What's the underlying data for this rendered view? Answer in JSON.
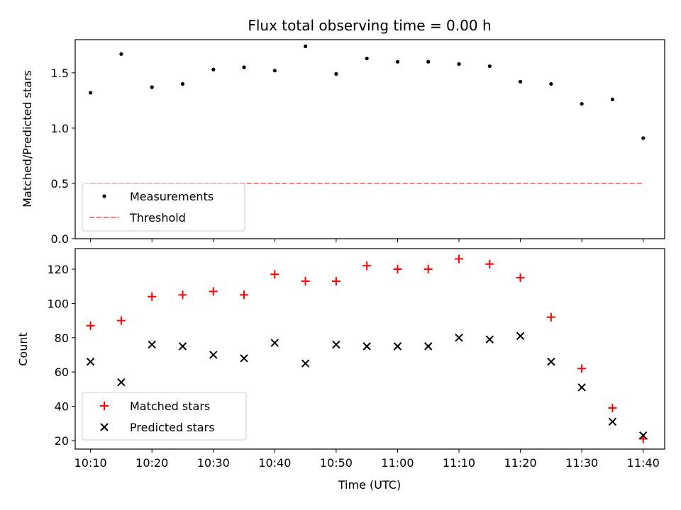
{
  "chart_data": [
    {
      "type": "scatter",
      "title": "Flux total observing time = 0.00 h",
      "xlabel": "",
      "ylabel": "Matched/Predicted stars",
      "ylim": [
        0,
        1.8
      ],
      "yticks": [
        0.0,
        0.5,
        1.0,
        1.5
      ],
      "ytick_labels": [
        "0.0",
        "0.5",
        "1.0",
        "1.5"
      ],
      "xlim": [
        "10:07:30",
        "11:43:30"
      ],
      "legend": "lower-left",
      "grid": false,
      "series": [
        {
          "name": "Measurements",
          "marker": "dot",
          "color": "#000000",
          "x": [
            "10:10",
            "10:15",
            "10:20",
            "10:25",
            "10:30",
            "10:35",
            "10:40",
            "10:45",
            "10:50",
            "10:55",
            "11:00",
            "11:05",
            "11:10",
            "11:15",
            "11:20",
            "11:25",
            "11:30",
            "11:35",
            "11:40"
          ],
          "y": [
            1.32,
            1.67,
            1.37,
            1.4,
            1.53,
            1.55,
            1.52,
            1.74,
            1.49,
            1.63,
            1.6,
            1.6,
            1.58,
            1.56,
            1.42,
            1.4,
            1.22,
            1.26,
            0.91
          ]
        },
        {
          "name": "Threshold",
          "marker": "dashed-line",
          "color": "#ff7f7f",
          "x": [
            "10:10",
            "11:40"
          ],
          "y": [
            0.5,
            0.5
          ]
        }
      ]
    },
    {
      "type": "scatter",
      "title": "",
      "xlabel": "Time (UTC)",
      "ylabel": "Count",
      "ylim": [
        15,
        132
      ],
      "yticks": [
        20,
        40,
        60,
        80,
        100,
        120
      ],
      "ytick_labels": [
        "20",
        "40",
        "60",
        "80",
        "100",
        "120"
      ],
      "xticks": [
        "10:10",
        "10:20",
        "10:30",
        "10:40",
        "10:50",
        "11:00",
        "11:10",
        "11:20",
        "11:30",
        "11:40"
      ],
      "xtick_labels": [
        "10:10",
        "10:20",
        "10:30",
        "10:40",
        "10:50",
        "11:00",
        "11:10",
        "11:20",
        "11:30",
        "11:40"
      ],
      "xlim": [
        "10:07:30",
        "11:43:30"
      ],
      "legend": "lower-left",
      "grid": false,
      "series": [
        {
          "name": "Matched stars",
          "marker": "plus",
          "color": "#ff0000",
          "x": [
            "10:10",
            "10:15",
            "10:20",
            "10:25",
            "10:30",
            "10:35",
            "10:40",
            "10:45",
            "10:50",
            "10:55",
            "11:00",
            "11:05",
            "11:10",
            "11:15",
            "11:20",
            "11:25",
            "11:30",
            "11:35",
            "11:40"
          ],
          "y": [
            87,
            90,
            104,
            105,
            107,
            105,
            117,
            113,
            113,
            122,
            120,
            120,
            126,
            123,
            115,
            92,
            62,
            39,
            21
          ]
        },
        {
          "name": "Predicted stars",
          "marker": "x",
          "color": "#000000",
          "x": [
            "10:10",
            "10:15",
            "10:20",
            "10:25",
            "10:30",
            "10:35",
            "10:40",
            "10:45",
            "10:50",
            "10:55",
            "11:00",
            "11:05",
            "11:10",
            "11:15",
            "11:20",
            "11:25",
            "11:30",
            "11:35",
            "11:40"
          ],
          "y": [
            66,
            54,
            76,
            75,
            70,
            68,
            77,
            65,
            76,
            75,
            75,
            75,
            80,
            79,
            81,
            66,
            51,
            31,
            23
          ]
        }
      ]
    }
  ]
}
